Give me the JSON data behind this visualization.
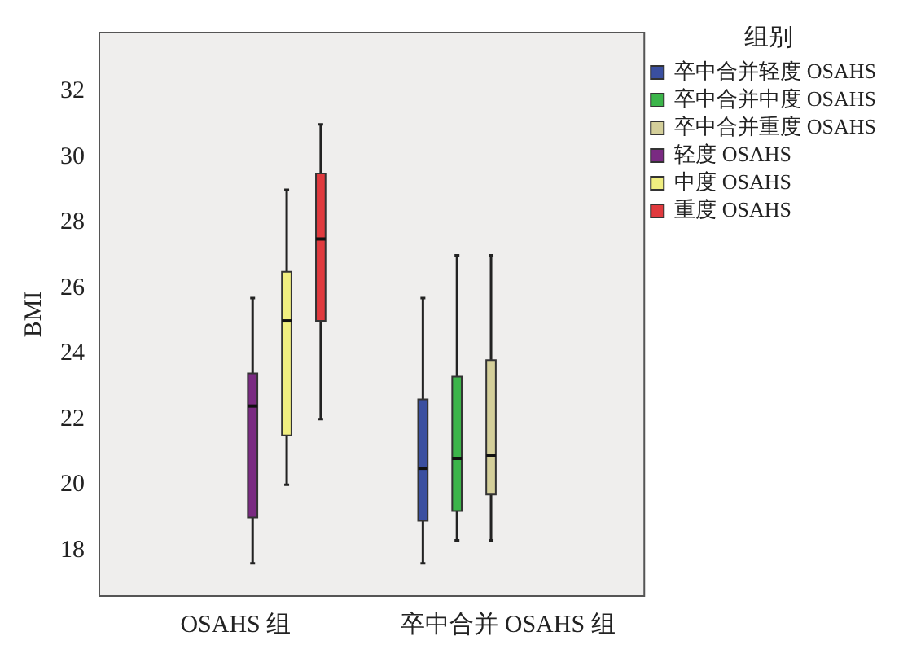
{
  "chart_data": {
    "type": "box",
    "ylabel": "BMI",
    "legend_title": "组别",
    "legend": "right",
    "grid": false,
    "categories": [
      "OSAHS 组",
      "卒中合并 OSAHS 组"
    ],
    "ylim": [
      16.6,
      33.8
    ],
    "yticks": [
      18,
      20,
      22,
      24,
      26,
      28,
      30,
      32
    ],
    "series": [
      {
        "name": "卒中合并轻度 OSAHS",
        "color": "#3a4fa0",
        "boxes": [
          null,
          {
            "low": 17.6,
            "q1": 18.9,
            "median": 20.5,
            "q3": 22.6,
            "high": 25.7
          }
        ]
      },
      {
        "name": "卒中合并中度 OSAHS",
        "color": "#3cb54a",
        "boxes": [
          null,
          {
            "low": 18.3,
            "q1": 19.2,
            "median": 20.8,
            "q3": 23.3,
            "high": 27
          }
        ]
      },
      {
        "name": "卒中合并重度 OSAHS",
        "color": "#d4cf9a",
        "boxes": [
          null,
          {
            "low": 18.3,
            "q1": 19.7,
            "median": 20.9,
            "q3": 23.8,
            "high": 27
          }
        ]
      },
      {
        "name": "轻度 OSAHS",
        "color": "#7a2a82",
        "boxes": [
          {
            "low": 17.6,
            "q1": 19,
            "median": 22.4,
            "q3": 23.4,
            "high": 25.7
          },
          null
        ]
      },
      {
        "name": "中度 OSAHS",
        "color": "#f0ee80",
        "boxes": [
          {
            "low": 20,
            "q1": 21.5,
            "median": 25,
            "q3": 26.5,
            "high": 29
          },
          null
        ]
      },
      {
        "name": "重度 OSAHS",
        "color": "#e03a3e",
        "boxes": [
          {
            "low": 22,
            "q1": 25,
            "median": 27.5,
            "q3": 29.5,
            "high": 31
          },
          null
        ]
      }
    ]
  }
}
